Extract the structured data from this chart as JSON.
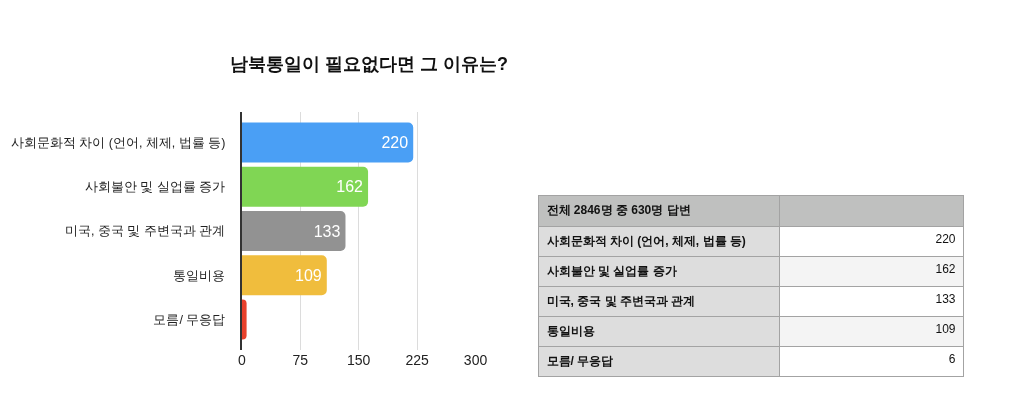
{
  "chart_data": [
    {
      "type": "bar",
      "orientation": "horizontal",
      "title": "남북통일이 필요없다면 그 이유는?",
      "categories": [
        "사회문화적 차이 (언어, 체제, 법률 등)",
        "사회불안 및 실업률 증가",
        "미국, 중국 및 주변국과 관계",
        "통일비용",
        "모름/ 무응답"
      ],
      "values": [
        220,
        162,
        133,
        109,
        6
      ],
      "value_labels": [
        "220",
        "162",
        "133",
        "109",
        null
      ],
      "colors": [
        "#4a9ff5",
        "#80d654",
        "#929292",
        "#f0bd3d",
        "#e8412c"
      ],
      "xlim": [
        0,
        300
      ],
      "xticks": [
        0,
        75,
        150,
        225,
        300
      ],
      "grid": "x"
    },
    {
      "type": "other",
      "title": "전체 2846명 중 630명 답변",
      "categories": [
        "사회문화적 차이 (언어, 체제, 법률 등)",
        "사회불안 및 실업률 증가",
        "미국, 중국 및 주변국과 관계",
        "통일비용",
        "모름/ 무응답"
      ],
      "values": [
        220,
        162,
        133,
        109,
        6
      ],
      "data_labels": true
    }
  ]
}
